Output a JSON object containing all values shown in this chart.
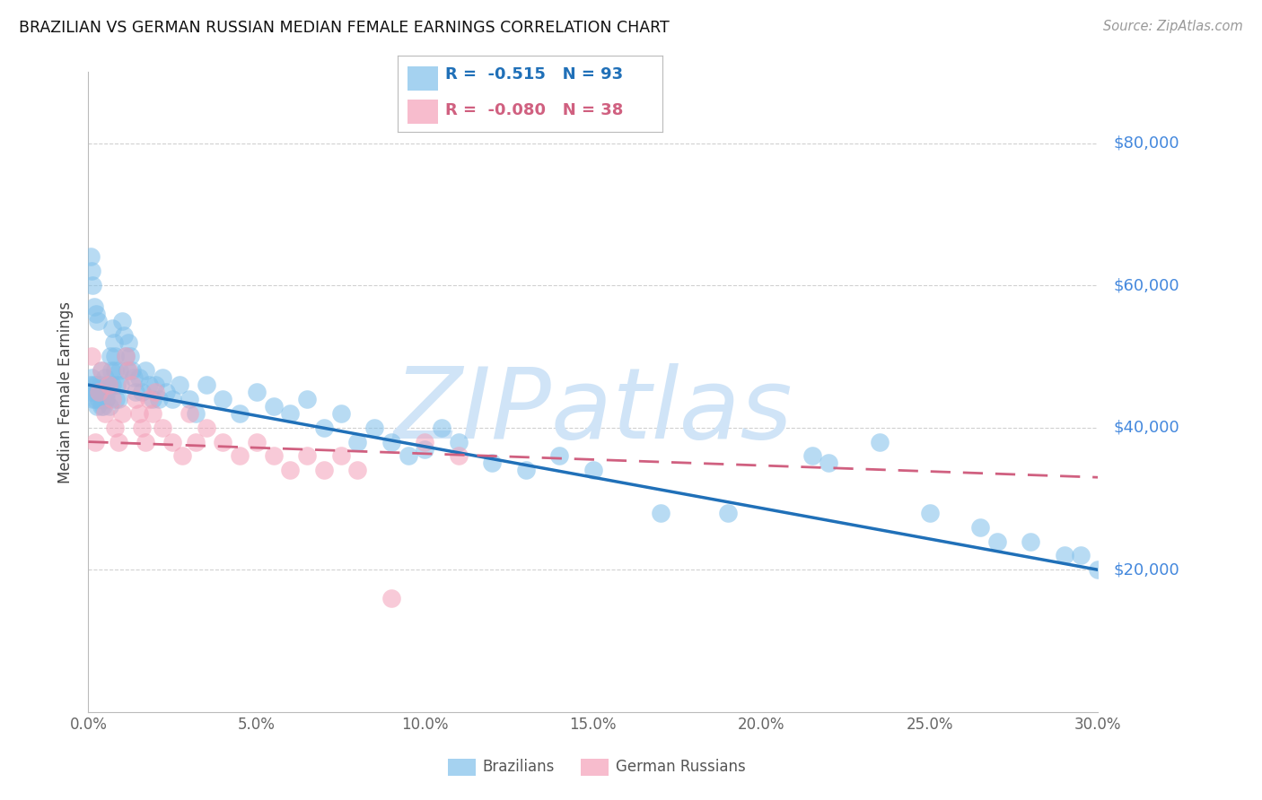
{
  "title": "BRAZILIAN VS GERMAN RUSSIAN MEDIAN FEMALE EARNINGS CORRELATION CHART",
  "source": "Source: ZipAtlas.com",
  "ylabel": "Median Female Earnings",
  "ytick_vals": [
    20000,
    40000,
    60000,
    80000
  ],
  "ytick_labels": [
    "$20,000",
    "$40,000",
    "$60,000",
    "$80,000"
  ],
  "ylim": [
    0,
    90000
  ],
  "xlim": [
    0,
    30
  ],
  "blue_color": "#7fbfea",
  "pink_color": "#f4a0b8",
  "blue_line_color": "#2070b8",
  "pink_line_color": "#d06080",
  "right_label_color": "#4488dd",
  "grid_color": "#cccccc",
  "legend_r_blue": "-0.515",
  "legend_n_blue": "93",
  "legend_r_pink": "-0.080",
  "legend_n_pink": "38",
  "watermark": "ZIPatlas",
  "watermark_color": "#d0e4f7",
  "brazil_x": [
    0.05,
    0.08,
    0.1,
    0.12,
    0.15,
    0.18,
    0.2,
    0.22,
    0.25,
    0.28,
    0.3,
    0.35,
    0.38,
    0.4,
    0.42,
    0.45,
    0.5,
    0.52,
    0.55,
    0.6,
    0.62,
    0.65,
    0.68,
    0.7,
    0.72,
    0.75,
    0.78,
    0.8,
    0.82,
    0.85,
    0.9,
    0.92,
    0.95,
    1.0,
    1.05,
    1.1,
    1.15,
    1.2,
    1.25,
    1.3,
    1.35,
    1.4,
    1.5,
    1.6,
    1.7,
    1.8,
    1.9,
    2.0,
    2.1,
    2.2,
    2.3,
    2.5,
    2.7,
    3.0,
    3.2,
    3.5,
    4.0,
    4.5,
    5.0,
    5.5,
    6.0,
    6.5,
    7.0,
    7.5,
    8.0,
    8.5,
    9.0,
    9.5,
    10.0,
    10.5,
    11.0,
    12.0,
    13.0,
    14.0,
    15.0,
    17.0,
    19.0,
    21.5,
    22.0,
    23.5,
    25.0,
    26.5,
    27.0,
    28.0,
    29.0,
    29.5,
    30.0,
    0.06,
    0.09,
    0.13,
    0.17,
    0.23,
    0.27
  ],
  "brazil_y": [
    46000,
    45000,
    47000,
    44000,
    46000,
    45000,
    44000,
    46000,
    43000,
    45000,
    44000,
    46000,
    43000,
    48000,
    44000,
    43000,
    47000,
    44000,
    45000,
    46000,
    43000,
    50000,
    48000,
    46000,
    54000,
    52000,
    50000,
    48000,
    44000,
    46000,
    44000,
    48000,
    46000,
    55000,
    53000,
    50000,
    48000,
    52000,
    50000,
    48000,
    47000,
    45000,
    47000,
    45000,
    48000,
    46000,
    44000,
    46000,
    44000,
    47000,
    45000,
    44000,
    46000,
    44000,
    42000,
    46000,
    44000,
    42000,
    45000,
    43000,
    42000,
    44000,
    40000,
    42000,
    38000,
    40000,
    38000,
    36000,
    37000,
    40000,
    38000,
    35000,
    34000,
    36000,
    34000,
    28000,
    28000,
    36000,
    35000,
    38000,
    28000,
    26000,
    24000,
    24000,
    22000,
    22000,
    20000,
    64000,
    62000,
    60000,
    57000,
    56000,
    55000
  ],
  "german_x": [
    0.1,
    0.2,
    0.3,
    0.4,
    0.5,
    0.6,
    0.7,
    0.8,
    0.9,
    1.0,
    1.1,
    1.2,
    1.3,
    1.4,
    1.5,
    1.6,
    1.7,
    1.8,
    1.9,
    2.0,
    2.2,
    2.5,
    2.8,
    3.0,
    3.2,
    3.5,
    4.0,
    4.5,
    5.0,
    5.5,
    6.0,
    6.5,
    7.0,
    7.5,
    8.0,
    9.0,
    10.0,
    11.0
  ],
  "german_y": [
    50000,
    38000,
    45000,
    48000,
    42000,
    46000,
    44000,
    40000,
    38000,
    42000,
    50000,
    48000,
    46000,
    44000,
    42000,
    40000,
    38000,
    44000,
    42000,
    45000,
    40000,
    38000,
    36000,
    42000,
    38000,
    40000,
    38000,
    36000,
    38000,
    36000,
    34000,
    36000,
    34000,
    36000,
    34000,
    16000,
    38000,
    36000
  ]
}
